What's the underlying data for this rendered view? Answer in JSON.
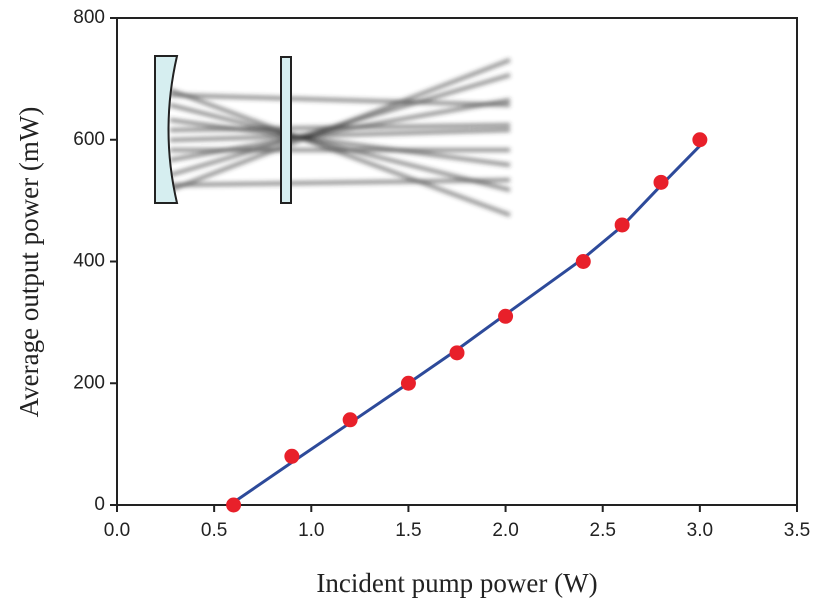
{
  "chart_data": {
    "type": "scatter",
    "x_label": "Incident pump power (W)",
    "y_label": "Average output power (mW)",
    "xlim": [
      0,
      3.5
    ],
    "xticks": [
      {
        "value": 0,
        "label": "0.0"
      },
      0.5,
      {
        "value": 1,
        "label": "1.0"
      },
      1.5,
      {
        "value": 2,
        "label": "2.0"
      },
      2.5,
      {
        "value": 3,
        "label": "3.0"
      },
      3.5
    ],
    "ylim": [
      0,
      800
    ],
    "yticks": [
      0,
      200,
      400,
      600,
      800
    ],
    "series": [
      {
        "type": "scatter",
        "color": "#e8202a",
        "x": [
          0.6,
          0.9,
          1.2,
          1.5,
          1.75,
          2.0,
          2.4,
          2.6,
          2.8,
          3.0
        ],
        "values": [
          0,
          80,
          140,
          200,
          250,
          310,
          400,
          460,
          530,
          600
        ]
      },
      {
        "type": "line",
        "color": "#2d4a9a",
        "x": [
          0.58,
          0.9,
          1.2,
          1.5,
          1.75,
          2.0,
          2.4,
          2.6,
          2.8,
          3.0
        ],
        "values": [
          0,
          70,
          135,
          200,
          255,
          313,
          405,
          458,
          525,
          590
        ]
      }
    ]
  }
}
